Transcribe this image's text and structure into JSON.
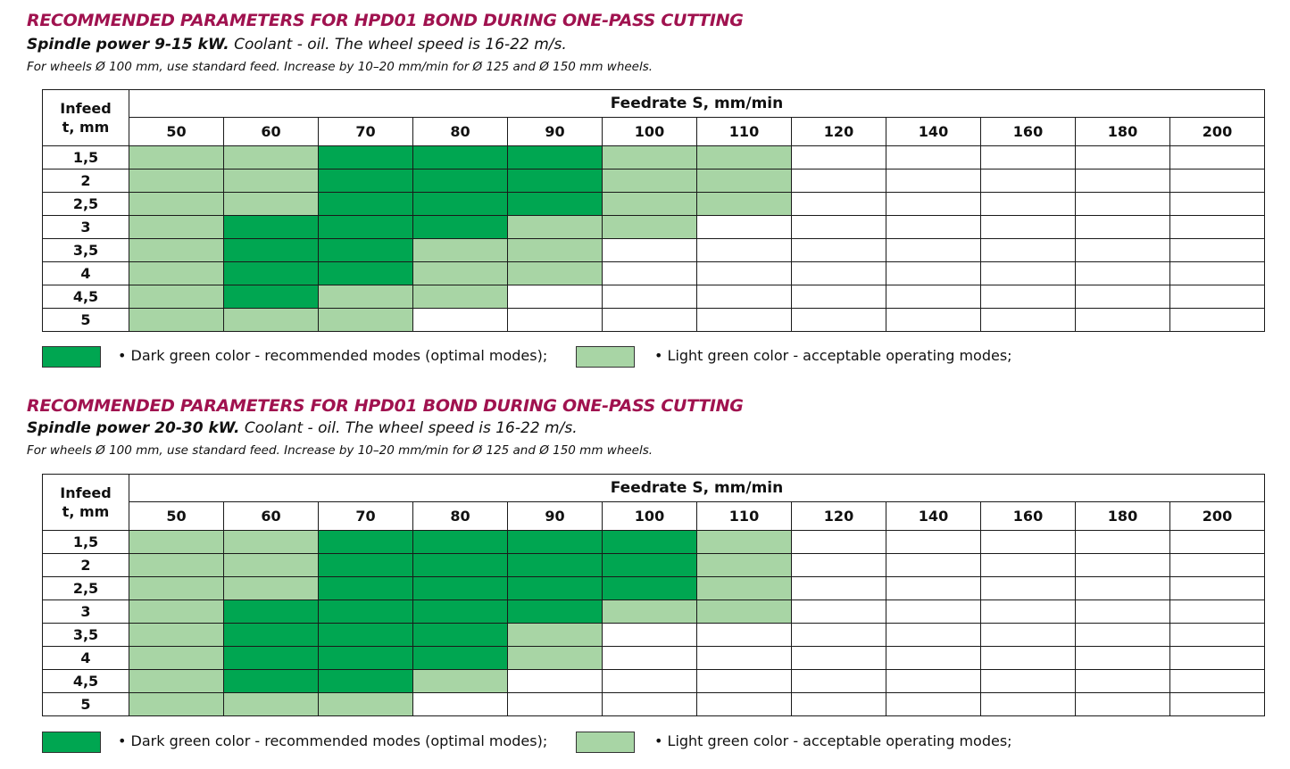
{
  "colors": {
    "dark": "#00a651",
    "light": "#a8d5a5",
    "title": "#a0124f"
  },
  "columns": [
    "50",
    "60",
    "70",
    "80",
    "90",
    "100",
    "110",
    "120",
    "140",
    "160",
    "180",
    "200"
  ],
  "rows": [
    "1,5",
    "2",
    "2,5",
    "3",
    "3,5",
    "4",
    "4,5",
    "5"
  ],
  "tables": [
    {
      "title": "RECOMMENDED PARAMETERS FOR HPD01 BOND DURING ONE-PASS CUTTING",
      "subtitle_bold": "Spindle power 9-15 kW.",
      "subtitle_rest": " Coolant - oil. The wheel speed is 16-22 m/s.",
      "note": "For wheels Ø 100 mm, use standard feed. Increase by 10–20 mm/min for Ø 125 and Ø 150 mm wheels.",
      "infeed_header_1": "Infeed",
      "infeed_header_2": "t, mm",
      "feedrate_header": "Feedrate S, mm/min",
      "grid": [
        [
          "l",
          "l",
          "d",
          "d",
          "d",
          "l",
          "l",
          "w",
          "w",
          "w",
          "w",
          "w"
        ],
        [
          "l",
          "l",
          "d",
          "d",
          "d",
          "l",
          "l",
          "w",
          "w",
          "w",
          "w",
          "w"
        ],
        [
          "l",
          "l",
          "d",
          "d",
          "d",
          "l",
          "l",
          "w",
          "w",
          "w",
          "w",
          "w"
        ],
        [
          "l",
          "d",
          "d",
          "d",
          "l",
          "l",
          "w",
          "w",
          "w",
          "w",
          "w",
          "w"
        ],
        [
          "l",
          "d",
          "d",
          "l",
          "l",
          "w",
          "w",
          "w",
          "w",
          "w",
          "w",
          "w"
        ],
        [
          "l",
          "d",
          "d",
          "l",
          "l",
          "w",
          "w",
          "w",
          "w",
          "w",
          "w",
          "w"
        ],
        [
          "l",
          "d",
          "l",
          "l",
          "w",
          "w",
          "w",
          "w",
          "w",
          "w",
          "w",
          "w"
        ],
        [
          "l",
          "l",
          "l",
          "w",
          "w",
          "w",
          "w",
          "w",
          "w",
          "w",
          "w",
          "w"
        ]
      ],
      "legend_dark": "• Dark green color - recommended modes (optimal modes);",
      "legend_light": "• Light green color - acceptable operating modes;"
    },
    {
      "title": "RECOMMENDED PARAMETERS FOR HPD01 BOND DURING ONE-PASS CUTTING",
      "subtitle_bold": "Spindle power 20-30 kW.",
      "subtitle_rest": " Coolant - oil. The wheel speed is 16-22 m/s.",
      "note": "For wheels Ø 100 mm, use standard feed. Increase by 10–20 mm/min for Ø 125 and Ø 150 mm wheels.",
      "infeed_header_1": "Infeed",
      "infeed_header_2": "t, mm",
      "feedrate_header": "Feedrate S, mm/min",
      "grid": [
        [
          "l",
          "l",
          "d",
          "d",
          "d",
          "d",
          "l",
          "w",
          "w",
          "w",
          "w",
          "w"
        ],
        [
          "l",
          "l",
          "d",
          "d",
          "d",
          "d",
          "l",
          "w",
          "w",
          "w",
          "w",
          "w"
        ],
        [
          "l",
          "l",
          "d",
          "d",
          "d",
          "d",
          "l",
          "w",
          "w",
          "w",
          "w",
          "w"
        ],
        [
          "l",
          "d",
          "d",
          "d",
          "d",
          "l",
          "l",
          "w",
          "w",
          "w",
          "w",
          "w"
        ],
        [
          "l",
          "d",
          "d",
          "d",
          "l",
          "w",
          "w",
          "w",
          "w",
          "w",
          "w",
          "w"
        ],
        [
          "l",
          "d",
          "d",
          "d",
          "l",
          "w",
          "w",
          "w",
          "w",
          "w",
          "w",
          "w"
        ],
        [
          "l",
          "d",
          "d",
          "l",
          "w",
          "w",
          "w",
          "w",
          "w",
          "w",
          "w",
          "w"
        ],
        [
          "l",
          "l",
          "l",
          "w",
          "w",
          "w",
          "w",
          "w",
          "w",
          "w",
          "w",
          "w"
        ]
      ],
      "legend_dark": "• Dark green color - recommended modes (optimal modes);",
      "legend_light": "• Light green color - acceptable operating modes;"
    }
  ]
}
